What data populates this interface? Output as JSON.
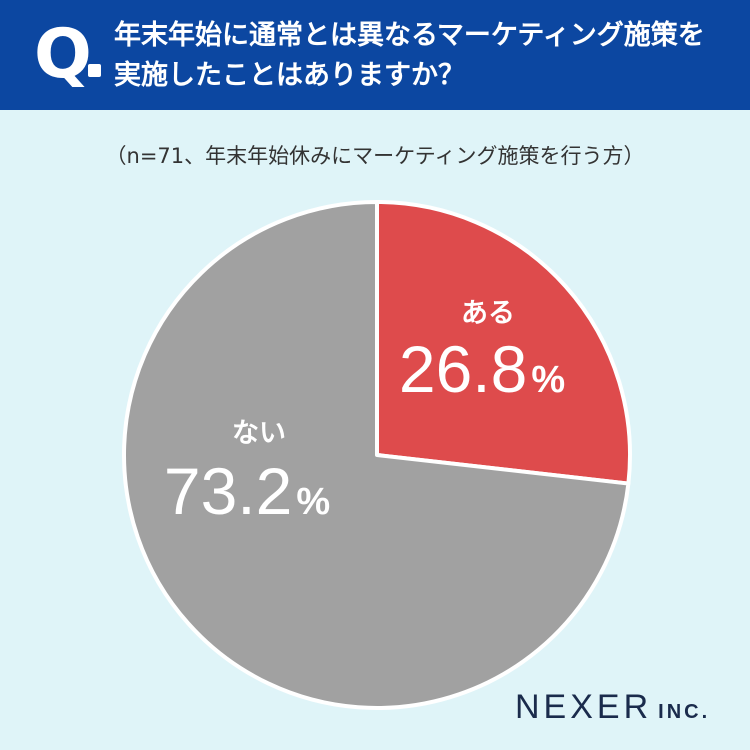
{
  "question": {
    "marker": "Q",
    "line1": "年末年始に通常とは異なるマーケティング施策を",
    "line2": "実施したことはありますか？"
  },
  "note": "（n=71、年末年始休みにマーケティング施策を行う方）",
  "chart_data": {
    "type": "pie",
    "title": "",
    "start": "12 o'clock, clockwise",
    "slices": [
      {
        "label": "ある",
        "value": 26.8,
        "display": "26.8",
        "unit": "%",
        "color": "#de4b4c"
      },
      {
        "label": "ない",
        "value": 73.2,
        "display": "73.2",
        "unit": "%",
        "color": "#a1a1a1"
      }
    ]
  },
  "logo": {
    "name": "NEXER",
    "suffix": "INC."
  }
}
